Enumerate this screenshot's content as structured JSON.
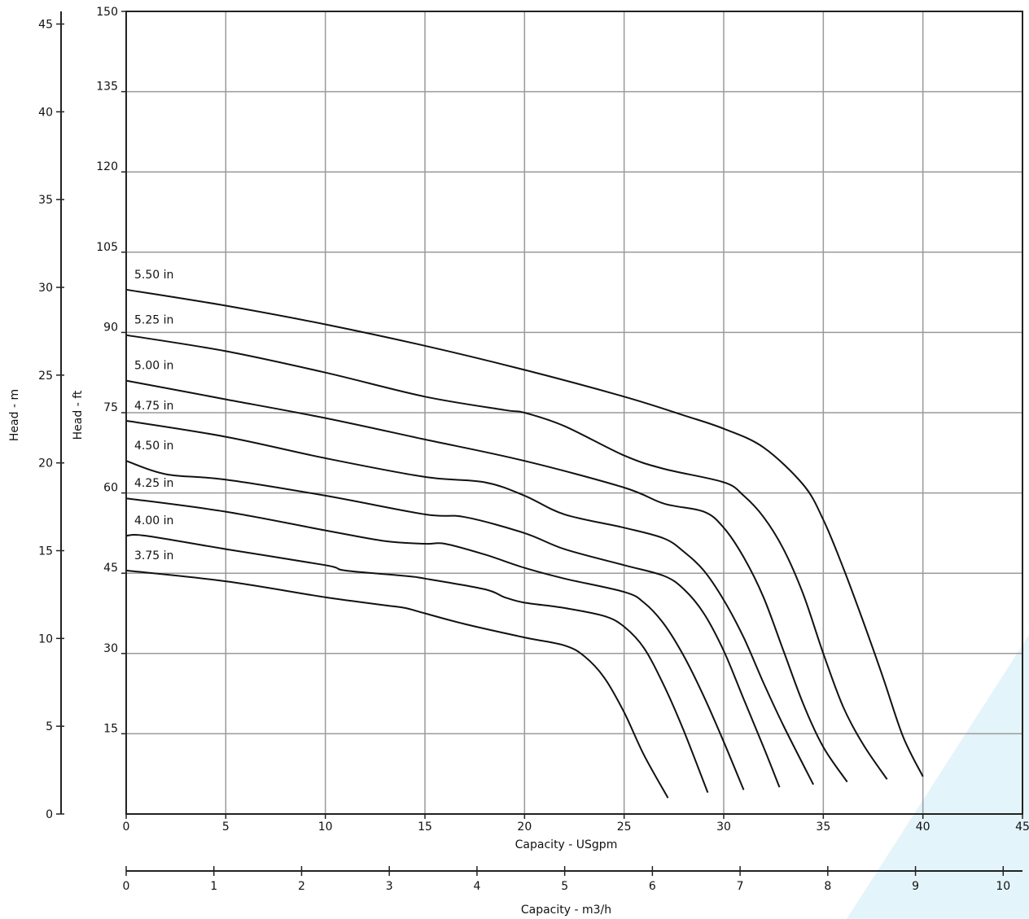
{
  "colors": {
    "background": "#ffffff",
    "grid": "#9a9a9a",
    "frame": "#222222",
    "curve": "#111111",
    "accent_band": "#e3f4fa"
  },
  "chart_data": {
    "type": "line",
    "title": "",
    "grid": true,
    "xlabel": "Capacity - USgpm",
    "x_secondary_label": "Capacity - m3/h",
    "ylabel": "Head - ft",
    "y_secondary_label": "Head - m",
    "xlim": [
      0,
      45
    ],
    "ylim": [
      0,
      150
    ],
    "x_secondary_lim": [
      0,
      10.22
    ],
    "y_secondary_lim": [
      0,
      45.72
    ],
    "x_ticks": [
      "0",
      "5",
      "10",
      "15",
      "20",
      "25",
      "30",
      "35",
      "40",
      "45"
    ],
    "y_ticks": [
      "150",
      "135",
      "120",
      "105",
      "90",
      "75",
      "60",
      "45",
      "30",
      "15"
    ],
    "x_secondary_ticks": [
      "0",
      "1",
      "2",
      "3",
      "4",
      "5",
      "6",
      "7",
      "8",
      "9",
      "10"
    ],
    "y_secondary_ticks": [
      "45",
      "40",
      "35",
      "30",
      "25",
      "20",
      "15",
      "10",
      "5",
      "0"
    ],
    "series": [
      {
        "name": "5.50 in",
        "x": [
          0,
          5,
          10,
          15,
          20,
          25,
          28,
          30,
          32,
          34,
          35,
          36,
          37,
          38,
          39,
          40
        ],
        "y": [
          98,
          95,
          91.5,
          87.5,
          83,
          78,
          74.5,
          72,
          68.5,
          61.5,
          55,
          46,
          36,
          25.5,
          14.5,
          7
        ]
      },
      {
        "name": "5.25 in",
        "x": [
          0,
          5,
          10,
          15,
          19,
          20,
          22,
          25,
          27,
          30,
          31,
          32,
          33,
          34,
          35,
          36,
          37,
          38.2
        ],
        "y": [
          89.5,
          86.5,
          82.5,
          78,
          75.5,
          75,
          72.5,
          67,
          64.5,
          62,
          59.5,
          55.5,
          49.5,
          41,
          30,
          20,
          13,
          6.5
        ]
      },
      {
        "name": "5.00 in",
        "x": [
          0,
          5,
          10,
          15,
          20,
          25,
          27,
          29,
          30,
          31,
          32,
          33,
          34,
          35,
          36.2
        ],
        "y": [
          81,
          77.5,
          74,
          70,
          66,
          61,
          58,
          56.5,
          53.5,
          48,
          40.5,
          30.5,
          20.5,
          12.5,
          6
        ]
      },
      {
        "name": "4.75 in",
        "x": [
          0,
          5,
          10,
          15,
          18,
          20,
          22,
          25,
          27,
          28,
          29,
          30,
          31,
          32,
          33,
          34.5
        ],
        "y": [
          73.5,
          70.5,
          66.5,
          63,
          62,
          59.5,
          56,
          53.5,
          51.5,
          49,
          45.5,
          40,
          33,
          24.5,
          16.5,
          5.5
        ]
      },
      {
        "name": "4.50 in",
        "x": [
          0,
          2,
          5,
          10,
          15,
          17,
          20,
          22,
          25,
          27,
          28,
          29,
          30,
          31,
          32,
          32.8
        ],
        "y": [
          66,
          63.5,
          62.5,
          59.5,
          56,
          55.5,
          52.5,
          49.5,
          46.5,
          44.5,
          42,
          37.5,
          30.5,
          21.5,
          12.5,
          5
        ]
      },
      {
        "name": "4.25 in",
        "x": [
          0,
          5,
          10,
          13,
          15,
          16,
          18,
          20,
          22,
          25,
          26,
          27,
          28,
          29,
          30,
          31
        ],
        "y": [
          59,
          56.5,
          53,
          51,
          50.5,
          50.5,
          48.5,
          46,
          44,
          41.5,
          39.5,
          35.5,
          29.5,
          22,
          13.5,
          4.5
        ]
      },
      {
        "name": "4.00 in",
        "x": [
          0,
          1,
          5,
          10,
          11,
          14,
          15,
          18,
          19,
          20,
          22,
          24,
          25,
          26,
          27,
          28,
          29.2
        ],
        "y": [
          52,
          52,
          49.5,
          46.5,
          45.5,
          44.5,
          44,
          42,
          40.5,
          39.5,
          38.5,
          37,
          35,
          31,
          24,
          15.5,
          4
        ]
      },
      {
        "name": "3.75 in",
        "x": [
          0,
          5,
          10,
          13,
          14,
          15,
          17,
          20,
          22,
          23,
          24,
          25,
          26,
          27.2
        ],
        "y": [
          45.5,
          43.5,
          40.5,
          39,
          38.5,
          37.5,
          35.5,
          33,
          31.5,
          29.5,
          25.5,
          19,
          11,
          3
        ]
      }
    ]
  }
}
